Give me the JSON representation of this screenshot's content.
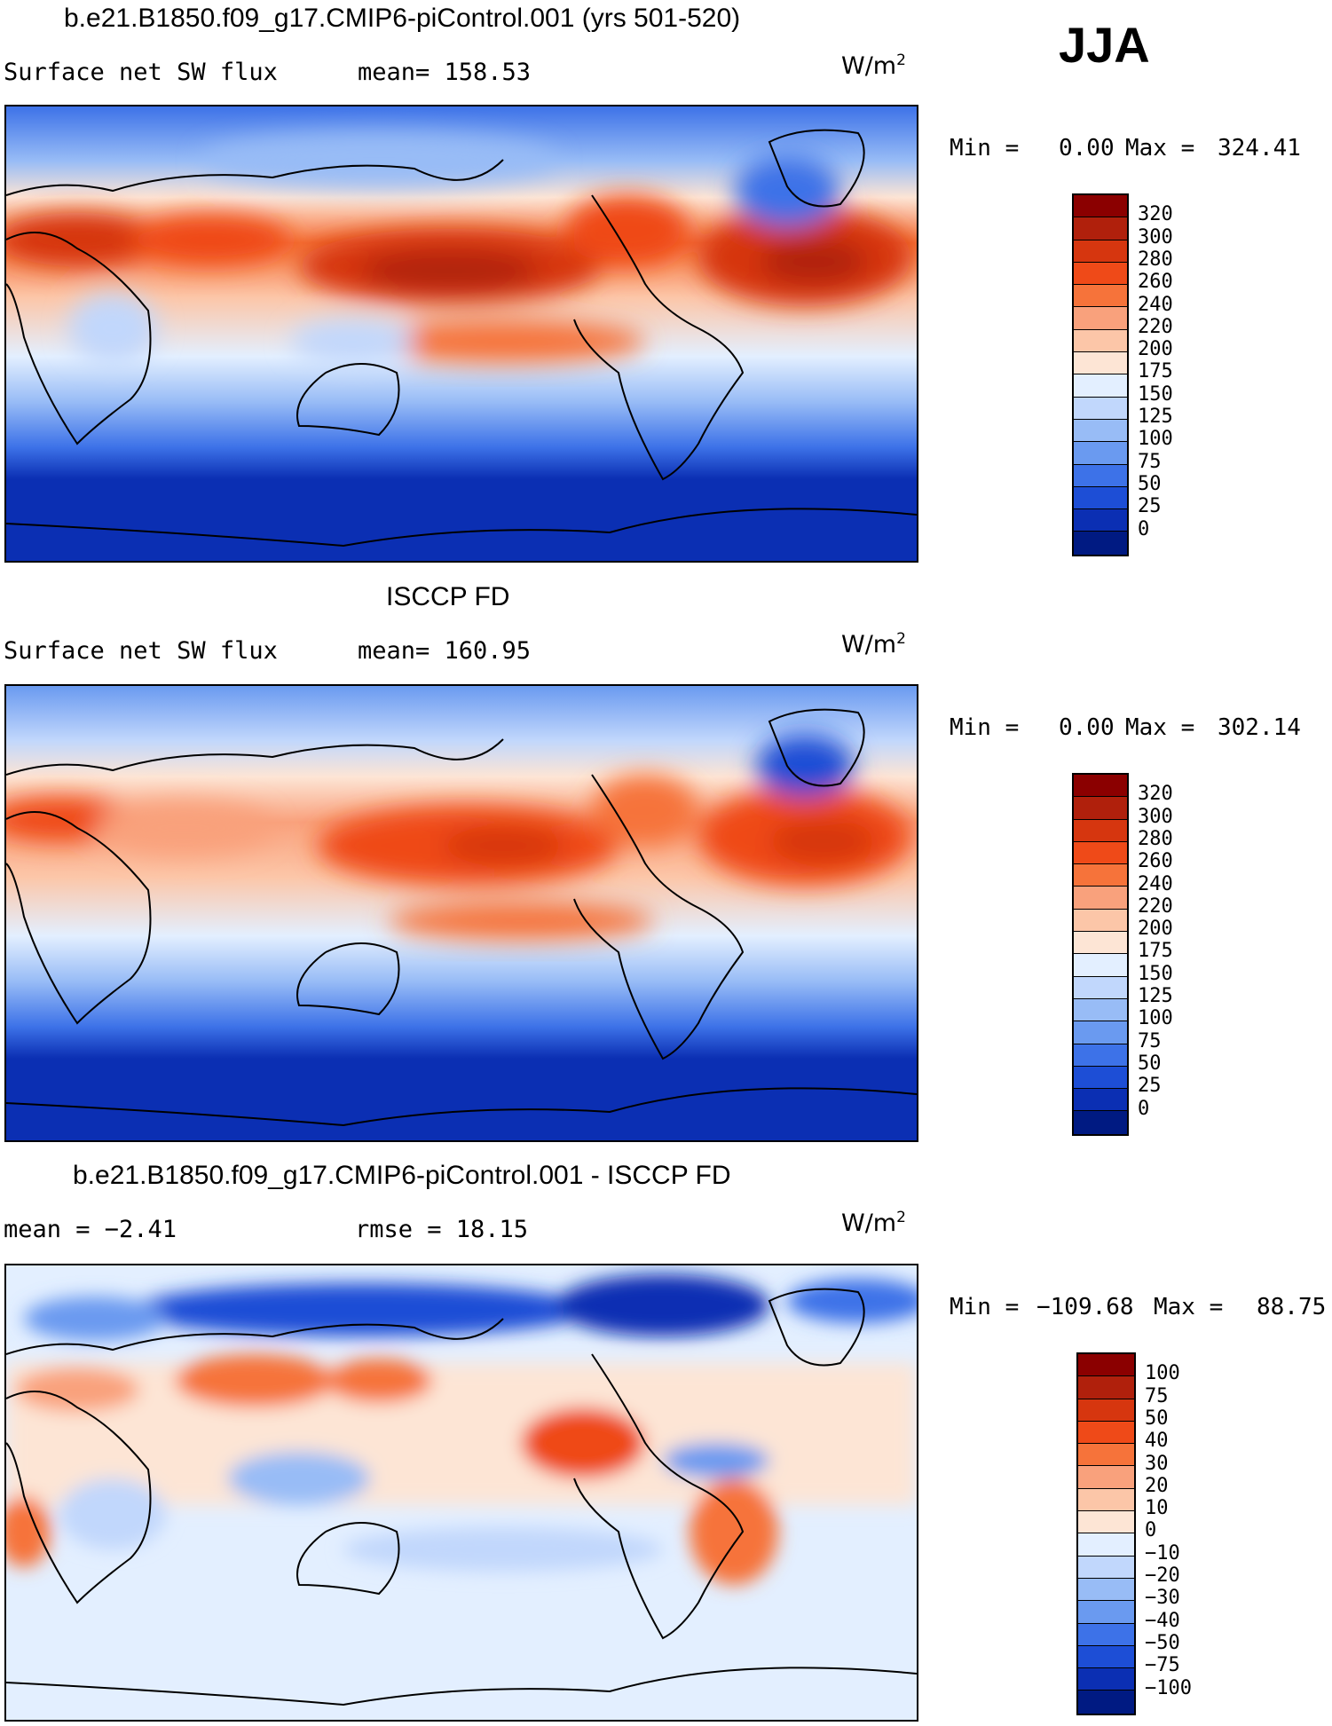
{
  "season": "JJA",
  "unit_text": "W/m",
  "unit_sup": "2",
  "panels": [
    {
      "title": "b.e21.B1850.f09_g17.CMIP6-piControl.001 (yrs 501-520)",
      "left_label": "Surface net SW flux",
      "right_label": "mean=  158.53",
      "min_label": "Min  =",
      "min_value": "0.00",
      "max_label": "Max  =",
      "max_value": "324.41"
    },
    {
      "title": "ISCCP FD",
      "left_label": "Surface net SW flux",
      "right_label": "mean=  160.95",
      "min_label": "Min  =",
      "min_value": "0.00",
      "max_label": "Max  =",
      "max_value": "302.14"
    },
    {
      "title": "b.e21.B1850.f09_g17.CMIP6-piControl.001 - ISCCP FD",
      "left_label": "mean =   −2.41",
      "right_label": "rmse =    18.15",
      "min_label": "Min  =",
      "min_value": "−109.68",
      "max_label": "Max  =",
      "max_value": "88.75"
    }
  ],
  "chart_data": [
    {
      "type": "heatmap",
      "title": "b.e21.B1850.f09_g17.CMIP6-piControl.001 (yrs 501-520)",
      "variable": "Surface net SW flux",
      "units": "W/m2",
      "mean": 158.53,
      "min": 0.0,
      "max": 324.41,
      "colorbar_levels": [
        "320",
        "300",
        "280",
        "260",
        "240",
        "220",
        "200",
        "175",
        "150",
        "125",
        "100",
        "75",
        "50",
        "25",
        "0"
      ],
      "colors": [
        "#8b0000",
        "#b0200c",
        "#d6360f",
        "#ef4a18",
        "#f6733a",
        "#f9a17c",
        "#fcc6a8",
        "#fde5d5",
        "#e3efff",
        "#c1d7fc",
        "#98bcf6",
        "#6a9af0",
        "#3d72e8",
        "#1d4ed6",
        "#0b2fb3",
        "#001a82"
      ]
    },
    {
      "type": "heatmap",
      "title": "ISCCP FD",
      "variable": "Surface net SW flux",
      "units": "W/m2",
      "mean": 160.95,
      "min": 0.0,
      "max": 302.14,
      "colorbar_levels": [
        "320",
        "300",
        "280",
        "260",
        "240",
        "220",
        "200",
        "175",
        "150",
        "125",
        "100",
        "75",
        "50",
        "25",
        "0"
      ],
      "colors": [
        "#8b0000",
        "#b0200c",
        "#d6360f",
        "#ef4a18",
        "#f6733a",
        "#f9a17c",
        "#fcc6a8",
        "#fde5d5",
        "#e3efff",
        "#c1d7fc",
        "#98bcf6",
        "#6a9af0",
        "#3d72e8",
        "#1d4ed6",
        "#0b2fb3",
        "#001a82"
      ]
    },
    {
      "type": "heatmap",
      "title": "b.e21.B1850.f09_g17.CMIP6-piControl.001 - ISCCP FD",
      "units": "W/m2",
      "mean": -2.41,
      "rmse": 18.15,
      "min": -109.68,
      "max": 88.75,
      "colorbar_levels": [
        "100",
        "75",
        "50",
        "40",
        "30",
        "20",
        "10",
        "0",
        "−10",
        "−20",
        "−30",
        "−40",
        "−50",
        "−75",
        "−100"
      ],
      "colors": [
        "#8b0000",
        "#b0200c",
        "#d6360f",
        "#ef4a18",
        "#f6733a",
        "#f9a17c",
        "#fcc6a8",
        "#fde5d5",
        "#e3efff",
        "#c1d7fc",
        "#98bcf6",
        "#6a9af0",
        "#3d72e8",
        "#1d4ed6",
        "#0b2fb3",
        "#001a82"
      ]
    }
  ]
}
